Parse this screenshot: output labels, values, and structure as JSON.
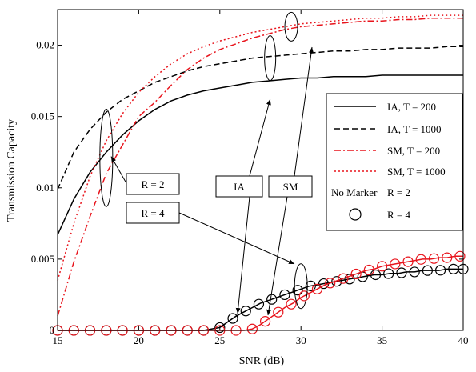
{
  "chart_data": {
    "type": "line",
    "xlabel": "SNR (dB)",
    "ylabel": "Transmission Capacity",
    "xlim": [
      15,
      40
    ],
    "ylim": [
      0,
      0.0225
    ],
    "xticks": [
      15,
      20,
      25,
      30,
      35,
      40
    ],
    "yticks": [
      0,
      0.005,
      0.01,
      0.015,
      0.02
    ],
    "ytick_labels": [
      "0",
      "0.005",
      "0.01",
      "0.015",
      "0.02"
    ],
    "grid": false,
    "legend_position": "right",
    "series": [
      {
        "name": "IA, T = 200",
        "color": "#000000",
        "dash": "solid",
        "marker": "none",
        "x": [
          15,
          16,
          17,
          18,
          19,
          20,
          21,
          22,
          23,
          24,
          25,
          26,
          27,
          28,
          29,
          30,
          31,
          32,
          33,
          34,
          35,
          36,
          37,
          38,
          39,
          40
        ],
        "y": [
          0.0067,
          0.0092,
          0.0111,
          0.0125,
          0.0137,
          0.0147,
          0.0155,
          0.0161,
          0.0165,
          0.0168,
          0.017,
          0.0172,
          0.0174,
          0.0175,
          0.0176,
          0.0177,
          0.0177,
          0.0178,
          0.0178,
          0.0178,
          0.0179,
          0.0179,
          0.0179,
          0.0179,
          0.0179,
          0.0179
        ]
      },
      {
        "name": "IA, T = 1000",
        "color": "#000000",
        "dash": "dashed",
        "marker": "none",
        "x": [
          15,
          16,
          17,
          18,
          19,
          20,
          21,
          22,
          23,
          24,
          25,
          26,
          27,
          28,
          29,
          30,
          31,
          32,
          33,
          34,
          35,
          36,
          37,
          38,
          39,
          40
        ],
        "y": [
          0.0099,
          0.0125,
          0.0141,
          0.0153,
          0.0162,
          0.0168,
          0.0174,
          0.0178,
          0.0182,
          0.0185,
          0.0187,
          0.0189,
          0.0191,
          0.0192,
          0.0193,
          0.0194,
          0.0195,
          0.0196,
          0.0196,
          0.0197,
          0.0197,
          0.0198,
          0.0198,
          0.0198,
          0.0199,
          0.0199
        ]
      },
      {
        "name": "SM, T = 200",
        "color": "#e8141c",
        "dash": "dashdot",
        "marker": "none",
        "x": [
          15,
          16,
          17,
          18,
          19,
          20,
          21,
          22,
          23,
          24,
          25,
          26,
          27,
          28,
          29,
          30,
          31,
          32,
          33,
          34,
          35,
          36,
          37,
          38,
          39,
          40
        ],
        "y": [
          0.001,
          0.0048,
          0.008,
          0.011,
          0.013,
          0.015,
          0.016,
          0.0172,
          0.0183,
          0.0191,
          0.0197,
          0.0201,
          0.0205,
          0.0208,
          0.0211,
          0.0213,
          0.0214,
          0.0215,
          0.0216,
          0.0217,
          0.0217,
          0.0218,
          0.0218,
          0.0219,
          0.0219,
          0.0219
        ]
      },
      {
        "name": "SM, T = 1000",
        "color": "#e8141c",
        "dash": "dotted",
        "marker": "none",
        "x": [
          15,
          16,
          17,
          18,
          19,
          20,
          21,
          22,
          23,
          24,
          25,
          26,
          27,
          28,
          29,
          30,
          31,
          32,
          33,
          34,
          35,
          36,
          37,
          38,
          39,
          40
        ],
        "y": [
          0.0035,
          0.0075,
          0.0108,
          0.0133,
          0.0152,
          0.0167,
          0.0178,
          0.0187,
          0.0194,
          0.0199,
          0.0203,
          0.0206,
          0.0209,
          0.0211,
          0.0213,
          0.0215,
          0.0216,
          0.0217,
          0.0218,
          0.0219,
          0.0219,
          0.022,
          0.022,
          0.0221,
          0.0221,
          0.0221
        ]
      },
      {
        "name": "IA, T = 200 (R = 4)",
        "color": "#000000",
        "dash": "solid",
        "marker": "circle",
        "x": [
          15,
          16,
          17,
          18,
          19,
          20,
          21,
          22,
          23,
          24,
          25,
          25.5,
          26,
          26.5,
          27,
          27.5,
          28,
          28.5,
          29,
          29.5,
          30,
          30.5,
          31,
          31.5,
          32,
          32.5,
          33,
          33.5,
          34,
          34.5,
          35,
          35.5,
          36,
          36.5,
          37,
          37.5,
          38,
          38.5,
          39,
          39.5,
          40
        ],
        "y": [
          0,
          0,
          0,
          0,
          0,
          0,
          0,
          0,
          0,
          0,
          0.0002,
          0.0006,
          0.001,
          0.0013,
          0.0016,
          0.0019,
          0.0021,
          0.0023,
          0.0025,
          0.0027,
          0.0029,
          0.0031,
          0.0032,
          0.0033,
          0.0034,
          0.0035,
          0.0036,
          0.0037,
          0.0038,
          0.0039,
          0.0039,
          0.004,
          0.004,
          0.0041,
          0.0041,
          0.0042,
          0.0042,
          0.0042,
          0.0043,
          0.0043,
          0.0043
        ],
        "marker_x": [
          15,
          16,
          17,
          18,
          19,
          20,
          21,
          22,
          23,
          24,
          25,
          25.8,
          26.6,
          27.4,
          28.2,
          29,
          29.8,
          30.6,
          31.4,
          32.2,
          33,
          33.8,
          34.6,
          35.4,
          36.2,
          37,
          37.8,
          38.6,
          39.4,
          40
        ]
      },
      {
        "name": "SM, T = 200 (R = 4)",
        "color": "#e8141c",
        "dash": "solid",
        "marker": "circle",
        "x": [
          15,
          16,
          17,
          18,
          19,
          20,
          21,
          22,
          23,
          24,
          25,
          26,
          26.5,
          27,
          27.5,
          28,
          28.5,
          29,
          29.5,
          30,
          30.5,
          31,
          31.5,
          32,
          32.5,
          33,
          33.5,
          34,
          34.5,
          35,
          35.5,
          36,
          36.5,
          37,
          37.5,
          38,
          38.5,
          39,
          39.5,
          40
        ],
        "y": [
          0,
          0,
          0,
          0,
          0,
          0,
          0,
          0,
          0,
          0,
          0,
          0,
          0,
          0.0001,
          0.0004,
          0.0008,
          0.0012,
          0.0016,
          0.0019,
          0.0023,
          0.0026,
          0.0029,
          0.0032,
          0.0034,
          0.0036,
          0.0038,
          0.004,
          0.0042,
          0.0043,
          0.0045,
          0.0046,
          0.0047,
          0.0048,
          0.0049,
          0.005,
          0.005,
          0.0051,
          0.0051,
          0.0052,
          0.0052
        ],
        "marker_x": [
          15,
          16,
          17,
          18,
          19,
          20,
          21,
          22,
          23,
          24,
          25,
          26,
          27,
          27.8,
          28.6,
          29.4,
          30.2,
          31,
          31.8,
          32.6,
          33.4,
          34.2,
          35,
          35.8,
          36.6,
          37.4,
          38.2,
          39,
          39.8
        ]
      }
    ],
    "legend": {
      "entries": [
        {
          "label": "IA, T = 200",
          "color": "#000000",
          "dash": "solid"
        },
        {
          "label": "IA, T = 1000",
          "color": "#000000",
          "dash": "dashed"
        },
        {
          "label": "SM, T = 200",
          "color": "#e8141c",
          "dash": "dashdot"
        },
        {
          "label": "SM, T = 1000",
          "color": "#e8141c",
          "dash": "dotted"
        }
      ],
      "no_marker_label": "No Marker",
      "r2_label": "R = 2",
      "r4_label": "R = 4"
    },
    "annotations": {
      "r2_box": "R = 2",
      "r4_box": "R = 4",
      "ia_box": "IA",
      "sm_box": "SM"
    }
  }
}
